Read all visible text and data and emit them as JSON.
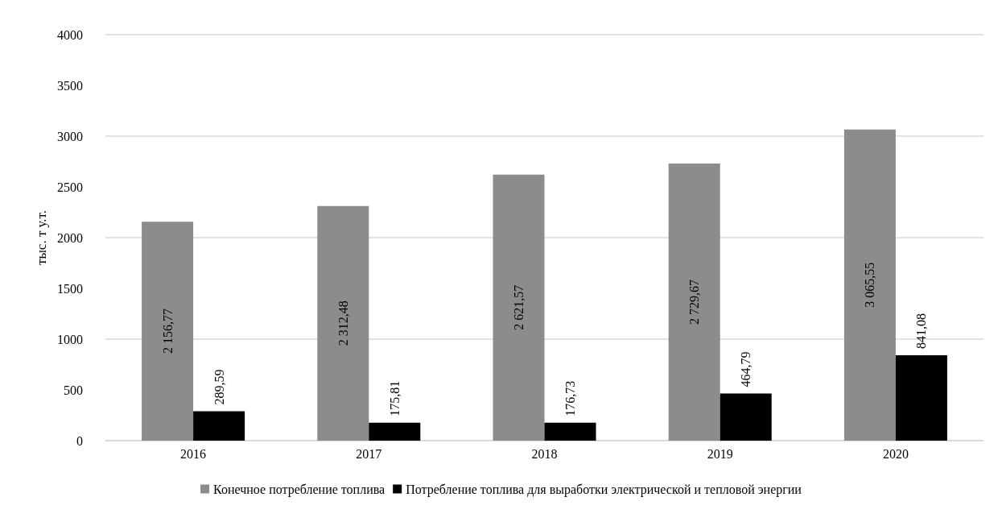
{
  "chart_data": {
    "type": "bar",
    "ylabel": "тыс. т у.т.",
    "categories": [
      "2016",
      "2017",
      "2018",
      "2019",
      "2020"
    ],
    "series": [
      {
        "name": "Конечное потребление топлива",
        "color": "#8c8c8c",
        "values": [
          2156.77,
          2312.48,
          2621.57,
          2729.67,
          3065.55
        ],
        "value_labels": [
          "2 156,77",
          "2 312,48",
          "2 621,57",
          "2 729,67",
          "3 065,55"
        ]
      },
      {
        "name": "Потребление топлива для выработки электрической и тепловой энергии",
        "color": "#000000",
        "values": [
          289.59,
          175.81,
          176.73,
          464.79,
          841.08
        ],
        "value_labels": [
          "289,59",
          "175,81",
          "176,73",
          "464,79",
          "841,08"
        ]
      }
    ],
    "ylim": [
      0,
      4000
    ],
    "yticks": [
      0,
      500,
      1000,
      1500,
      2000,
      2500,
      3000,
      3500,
      4000
    ],
    "grid": "y",
    "legend": "bottom"
  }
}
